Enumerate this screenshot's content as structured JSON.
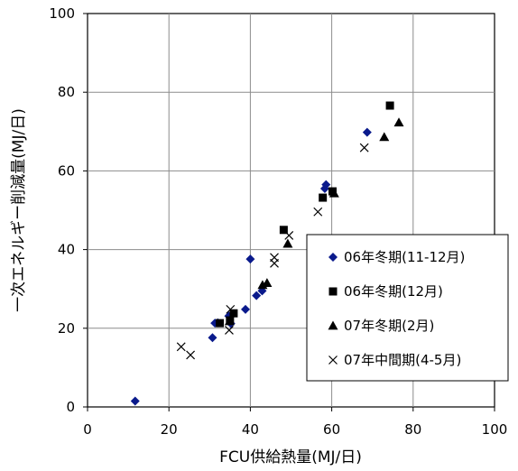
{
  "chart_data": {
    "type": "scatter",
    "title": "",
    "xlabel": "FCU供給熱量(MJ/日)",
    "ylabel": "一次エネルギー削減量(MJ/日)",
    "xlim": [
      0,
      100
    ],
    "ylim": [
      0,
      100
    ],
    "xticks": [
      "0",
      "20",
      "40",
      "60",
      "80",
      "100"
    ],
    "yticks": [
      "0",
      "20",
      "40",
      "60",
      "80",
      "100"
    ],
    "grid": true,
    "legend_position": "lower-right",
    "series": [
      {
        "name": "06年冬期(11-12月)",
        "marker": "diamond",
        "color": "#0a1a8c",
        "points": [
          [
            11.7,
            1.5
          ],
          [
            30.7,
            17.6
          ],
          [
            31.3,
            21.3
          ],
          [
            32.0,
            21.4
          ],
          [
            34.7,
            23.1
          ],
          [
            35.2,
            21.2
          ],
          [
            38.8,
            24.8
          ],
          [
            40.0,
            37.6
          ],
          [
            41.5,
            28.3
          ],
          [
            42.9,
            29.5
          ],
          [
            58.3,
            55.5
          ],
          [
            58.6,
            56.5
          ],
          [
            68.7,
            69.8
          ]
        ]
      },
      {
        "name": "06年冬期(12月)",
        "marker": "square",
        "color": "#000000",
        "points": [
          [
            32.5,
            21.3
          ],
          [
            35.0,
            22.0
          ],
          [
            35.9,
            23.8
          ],
          [
            48.2,
            45.0
          ],
          [
            57.8,
            53.2
          ],
          [
            60.2,
            54.8
          ],
          [
            74.3,
            76.6
          ]
        ]
      },
      {
        "name": "07年冬期(2月)",
        "marker": "triangle",
        "color": "#000000",
        "points": [
          [
            34.9,
            21.8
          ],
          [
            43.0,
            31.0
          ],
          [
            44.1,
            31.5
          ],
          [
            49.2,
            41.5
          ],
          [
            60.6,
            54.3
          ],
          [
            72.9,
            68.6
          ],
          [
            76.5,
            72.3
          ]
        ]
      },
      {
        "name": "07年中間期(4-5月)",
        "marker": "x",
        "color": "#000000",
        "points": [
          [
            23.0,
            15.3
          ],
          [
            25.3,
            13.2
          ],
          [
            34.8,
            19.5
          ],
          [
            35.1,
            24.8
          ],
          [
            45.9,
            36.5
          ],
          [
            45.9,
            38.0
          ],
          [
            49.5,
            43.6
          ],
          [
            56.6,
            49.6
          ],
          [
            68.0,
            65.9
          ]
        ]
      }
    ]
  }
}
